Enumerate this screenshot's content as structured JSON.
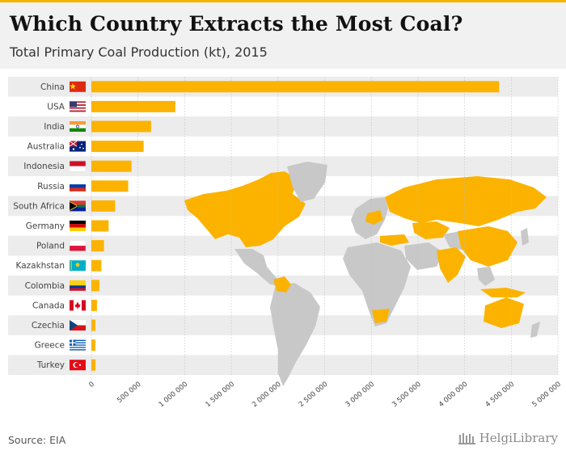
{
  "header": {
    "title": "Which Country Extracts the Most Coal?",
    "subtitle": "Total Primary Coal Production (kt), 2015"
  },
  "footer": {
    "source": "Source: EIA",
    "brand": "HelgiLibrary"
  },
  "colors": {
    "bar": "#fbb300",
    "map_highlight": "#fbb300",
    "map_other": "#c8c8c8",
    "stripe": "#ececec",
    "accent": "#f5b301"
  },
  "chart_data": {
    "type": "bar",
    "orientation": "horizontal",
    "title": "Which Country Extracts the Most Coal?",
    "subtitle": "Total Primary Coal Production (kt), 2015",
    "categories": [
      "China",
      "USA",
      "India",
      "Australia",
      "Indonesia",
      "Russia",
      "South Africa",
      "Germany",
      "Poland",
      "Kazakhstan",
      "Colombia",
      "Canada",
      "Czechia",
      "Greece",
      "Turkey"
    ],
    "flags": [
      "china-flag",
      "usa-flag",
      "india-flag",
      "australia-flag",
      "indonesia-flag",
      "russia-flag",
      "south-africa-flag",
      "germany-flag",
      "poland-flag",
      "kazakhstan-flag",
      "colombia-flag",
      "canada-flag",
      "czechia-flag",
      "greece-flag",
      "turkey-flag"
    ],
    "values": [
      4370000,
      900000,
      640000,
      560000,
      430000,
      395000,
      255000,
      185000,
      135000,
      107000,
      86000,
      60000,
      43000,
      43000,
      45000
    ],
    "xlim": [
      0,
      5000000
    ],
    "xticks": [
      0,
      500000,
      1000000,
      1500000,
      2000000,
      2500000,
      3000000,
      3500000,
      4000000,
      4500000,
      5000000
    ],
    "xtick_labels": [
      "0",
      "500 000",
      "1 000 000",
      "1 500 000",
      "2 000 000",
      "2 500 000",
      "3 000 000",
      "3 500 000",
      "4 000 000",
      "4 500 000",
      "5 000 000"
    ],
    "xlabel": "",
    "ylabel": "",
    "grid": true
  }
}
